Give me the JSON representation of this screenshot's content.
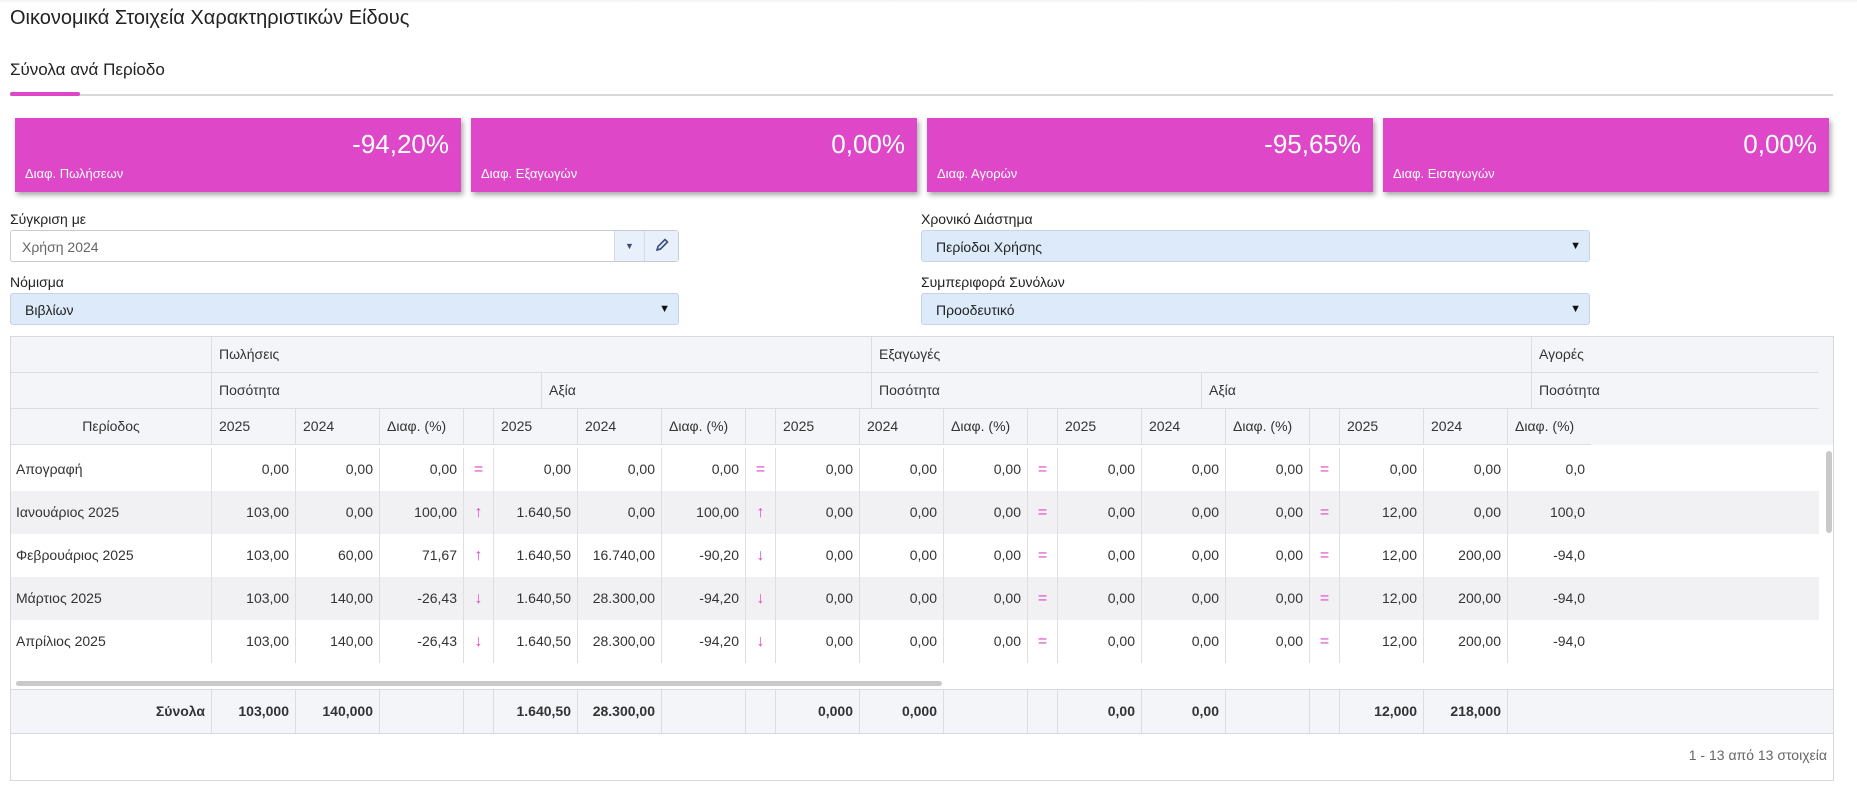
{
  "page": {
    "title": "Οικονομικά Στοιχεία Χαρακτηριστικών Είδους"
  },
  "tabs": [
    {
      "label": "Σύνολα ανά Περίοδο",
      "active": true
    }
  ],
  "colors": {
    "accent": "#dd47c8",
    "select_bg": "#dceaf9",
    "header_bg": "#f4f5f9"
  },
  "kpis": [
    {
      "value": "-94,20%",
      "label": "Διαφ. Πωλήσεων"
    },
    {
      "value": "0,00%",
      "label": "Διαφ. Εξαγωγών"
    },
    {
      "value": "-95,65%",
      "label": "Διαφ. Αγορών"
    },
    {
      "value": "0,00%",
      "label": "Διαφ. Εισαγωγών"
    }
  ],
  "filters": {
    "compare": {
      "label": "Σύγκριση με",
      "value": "Χρήση 2024",
      "icons": [
        "triangle-down-icon",
        "pencil-icon"
      ]
    },
    "period": {
      "label": "Χρονικό Διάστημα",
      "value": "Περίοδοι Χρήσης"
    },
    "currency": {
      "label": "Νόμισμα",
      "value": "Βιβλίων"
    },
    "totals": {
      "label": "Συμπεριφορά Συνόλων",
      "value": "Προοδευτικό"
    }
  },
  "grid": {
    "groups": [
      "Πωλήσεις",
      "Εξαγωγές",
      "Αγορές"
    ],
    "subgroups": [
      "Ποσότητα",
      "Αξία",
      "Ποσότητα",
      "Αξία",
      "Ποσότητα"
    ],
    "columns": [
      "Περίοδος",
      "2025",
      "2024",
      "Διαφ. (%)"
    ],
    "indicator_icons": {
      "=": "equals-icon",
      "↑": "arrow-up-icon",
      "↓": "arrow-down-icon"
    },
    "rows": [
      {
        "period": "Απογραφή",
        "cells": [
          "0,00",
          "0,00",
          "0,00",
          "=",
          "0,00",
          "0,00",
          "0,00",
          "=",
          "0,00",
          "0,00",
          "0,00",
          "=",
          "0,00",
          "0,00",
          "0,00",
          "=",
          "0,00",
          "0,00",
          "0,0"
        ]
      },
      {
        "period": "Ιανουάριος 2025",
        "cells": [
          "103,00",
          "0,00",
          "100,00",
          "↑",
          "1.640,50",
          "0,00",
          "100,00",
          "↑",
          "0,00",
          "0,00",
          "0,00",
          "=",
          "0,00",
          "0,00",
          "0,00",
          "=",
          "12,00",
          "0,00",
          "100,0"
        ]
      },
      {
        "period": "Φεβρουάριος 2025",
        "cells": [
          "103,00",
          "60,00",
          "71,67",
          "↑",
          "1.640,50",
          "16.740,00",
          "-90,20",
          "↓",
          "0,00",
          "0,00",
          "0,00",
          "=",
          "0,00",
          "0,00",
          "0,00",
          "=",
          "12,00",
          "200,00",
          "-94,0"
        ]
      },
      {
        "period": "Μάρτιος 2025",
        "cells": [
          "103,00",
          "140,00",
          "-26,43",
          "↓",
          "1.640,50",
          "28.300,00",
          "-94,20",
          "↓",
          "0,00",
          "0,00",
          "0,00",
          "=",
          "0,00",
          "0,00",
          "0,00",
          "=",
          "12,00",
          "200,00",
          "-94,0"
        ]
      },
      {
        "period": "Απρίλιος 2025",
        "cells": [
          "103,00",
          "140,00",
          "-26,43",
          "↓",
          "1.640,50",
          "28.300,00",
          "-94,20",
          "↓",
          "0,00",
          "0,00",
          "0,00",
          "=",
          "0,00",
          "0,00",
          "0,00",
          "=",
          "12,00",
          "200,00",
          "-94,0"
        ]
      }
    ],
    "totals": {
      "label": "Σύνολα",
      "cells": [
        "103,000",
        "140,000",
        "",
        "",
        "1.640,50",
        "28.300,00",
        "",
        "",
        "0,000",
        "0,000",
        "",
        "",
        "0,00",
        "0,00",
        "",
        "",
        "12,000",
        "218,000",
        ""
      ]
    },
    "pager": "1 - 13 από 13 στοιχεία"
  }
}
